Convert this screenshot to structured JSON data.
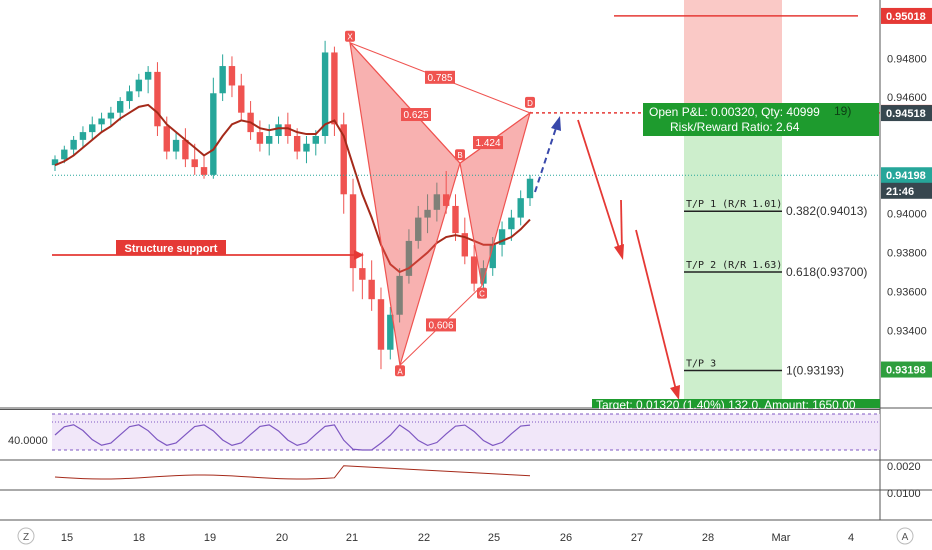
{
  "chart_data": {
    "type": "candlestick",
    "symbol_timeframe_hint": "",
    "x_axis": {
      "ticks": [
        "15",
        "18",
        "19",
        "20",
        "21",
        "22",
        "25",
        "26",
        "27",
        "28",
        "Mar",
        "4"
      ],
      "left_corner": "Z",
      "right_corner": "A"
    },
    "y_axis": {
      "range": [
        0.93,
        0.951
      ],
      "ticks": [
        "0.94800",
        "0.94600",
        "0.94200",
        "0.94000",
        "0.93800",
        "0.93600",
        "0.93400"
      ],
      "labels": [
        {
          "text": "0.95018",
          "value": 0.95018,
          "color": "#e53935"
        },
        {
          "text": "0.94519",
          "value": 0.94519,
          "color": "#e53935"
        },
        {
          "text": "0.94518",
          "value": 0.94518,
          "color": "#37474f"
        },
        {
          "text": "0.94198",
          "value": 0.94198,
          "color": "#26a69a"
        },
        {
          "text": "21:46",
          "value": 0.94118,
          "color": "#37474f"
        },
        {
          "text": "0.93198",
          "value": 0.93198,
          "color": "#2e9e3e"
        }
      ]
    },
    "series": [
      {
        "kind": "candles",
        "bars": [
          [
            0.9425,
            0.943,
            0.9422,
            0.9428
          ],
          [
            0.9428,
            0.9435,
            0.9426,
            0.9433
          ],
          [
            0.9433,
            0.944,
            0.943,
            0.9438
          ],
          [
            0.9438,
            0.9445,
            0.9434,
            0.9442
          ],
          [
            0.9442,
            0.945,
            0.9438,
            0.9446
          ],
          [
            0.9446,
            0.9452,
            0.9442,
            0.9449
          ],
          [
            0.9449,
            0.9455,
            0.9445,
            0.9452
          ],
          [
            0.9452,
            0.946,
            0.9448,
            0.9458
          ],
          [
            0.9458,
            0.9466,
            0.9454,
            0.9463
          ],
          [
            0.9463,
            0.9472,
            0.946,
            0.9469
          ],
          [
            0.9469,
            0.9476,
            0.9462,
            0.9473
          ],
          [
            0.9473,
            0.9478,
            0.944,
            0.9445
          ],
          [
            0.9445,
            0.945,
            0.9428,
            0.9432
          ],
          [
            0.9432,
            0.9442,
            0.9428,
            0.9438
          ],
          [
            0.9438,
            0.9444,
            0.9424,
            0.9428
          ],
          [
            0.9428,
            0.9436,
            0.942,
            0.9424
          ],
          [
            0.9424,
            0.943,
            0.9418,
            0.942
          ],
          [
            0.942,
            0.947,
            0.9418,
            0.9462
          ],
          [
            0.9462,
            0.9482,
            0.9458,
            0.9476
          ],
          [
            0.9476,
            0.9481,
            0.946,
            0.9466
          ],
          [
            0.9466,
            0.9472,
            0.9448,
            0.9452
          ],
          [
            0.9452,
            0.9458,
            0.9438,
            0.9442
          ],
          [
            0.9442,
            0.9448,
            0.9432,
            0.9436
          ],
          [
            0.9436,
            0.9446,
            0.943,
            0.944
          ],
          [
            0.944,
            0.945,
            0.9436,
            0.9446
          ],
          [
            0.9446,
            0.9452,
            0.9436,
            0.944
          ],
          [
            0.944,
            0.9444,
            0.9428,
            0.9432
          ],
          [
            0.9432,
            0.944,
            0.9426,
            0.9436
          ],
          [
            0.9436,
            0.9443,
            0.943,
            0.944
          ],
          [
            0.944,
            0.9489,
            0.9436,
            0.9483
          ],
          [
            0.9483,
            0.9486,
            0.944,
            0.9446
          ],
          [
            0.9446,
            0.9452,
            0.94,
            0.941
          ],
          [
            0.941,
            0.9418,
            0.936,
            0.9372
          ],
          [
            0.9372,
            0.938,
            0.9356,
            0.9366
          ],
          [
            0.9366,
            0.9376,
            0.935,
            0.9356
          ],
          [
            0.9356,
            0.9362,
            0.932,
            0.933
          ],
          [
            0.933,
            0.9352,
            0.9325,
            0.9348
          ],
          [
            0.9348,
            0.9372,
            0.9344,
            0.9368
          ],
          [
            0.9368,
            0.9392,
            0.9364,
            0.9386
          ],
          [
            0.9386,
            0.9404,
            0.9382,
            0.9398
          ],
          [
            0.9398,
            0.941,
            0.939,
            0.9402
          ],
          [
            0.9402,
            0.9416,
            0.9396,
            0.941
          ],
          [
            0.941,
            0.9422,
            0.94,
            0.9404
          ],
          [
            0.9404,
            0.941,
            0.9386,
            0.939
          ],
          [
            0.939,
            0.9398,
            0.9374,
            0.9378
          ],
          [
            0.9378,
            0.9384,
            0.936,
            0.9364
          ],
          [
            0.9364,
            0.9376,
            0.936,
            0.9372
          ],
          [
            0.9372,
            0.9388,
            0.9368,
            0.9384
          ],
          [
            0.9384,
            0.9396,
            0.9378,
            0.9392
          ],
          [
            0.9392,
            0.9402,
            0.9386,
            0.9398
          ],
          [
            0.9398,
            0.9412,
            0.9394,
            0.9408
          ],
          [
            0.9408,
            0.942,
            0.9404,
            0.9418
          ]
        ]
      },
      {
        "kind": "ma",
        "color": "#a52a1a",
        "values": [
          0.9425,
          0.9427,
          0.943,
          0.9434,
          0.9438,
          0.9442,
          0.9445,
          0.9449,
          0.9452,
          0.9455,
          0.9456,
          0.9452,
          0.9446,
          0.9442,
          0.9438,
          0.9434,
          0.943,
          0.9433,
          0.944,
          0.9446,
          0.9448,
          0.9447,
          0.9444,
          0.9443,
          0.9444,
          0.9444,
          0.9442,
          0.9441,
          0.9441,
          0.9446,
          0.9448,
          0.944,
          0.9425,
          0.941,
          0.9398,
          0.9384,
          0.9374,
          0.937,
          0.9372,
          0.9376,
          0.938,
          0.9385,
          0.9388,
          0.9389,
          0.9388,
          0.9386,
          0.9384,
          0.9384,
          0.9386,
          0.9388,
          0.9392,
          0.9397
        ]
      }
    ],
    "harmonic_pattern": {
      "points": [
        {
          "label": "X",
          "value": 0.9488
        },
        {
          "label": "A",
          "value": 0.9322
        },
        {
          "label": "B",
          "value": 0.9426
        },
        {
          "label": "C",
          "value": 0.9363
        },
        {
          "label": "D",
          "value": 0.94519
        }
      ],
      "ratios": [
        "0.785",
        "0.625",
        "0.606",
        "1.424"
      ],
      "color": "#ef5350"
    },
    "annotations": {
      "structure_support": "Structure support",
      "open_pnl": "Open P&L: 0.00320, Qty: 40999",
      "open_pnl_suffix": "19)",
      "risk_reward": "Risk/Reward Ratio: 2.64",
      "target": "Target: 0.01320 (1.40%) 132.0, Amount: 1650.00",
      "tp_labels": [
        "T/P 1 (R/R 1.01)",
        "T/P 2 (R/R 1.63)",
        "T/P 3"
      ],
      "fib_labels": [
        {
          "text": "0.382(0.94013)",
          "value": 0.94013
        },
        {
          "text": "0.618(0.93700)",
          "value": 0.937
        },
        {
          "text": "1(0.93193)",
          "value": 0.93193
        }
      ]
    },
    "rsi_panel": {
      "level_label": "40.0000",
      "color": "#7e57c2"
    },
    "lower_panel": {
      "ticks": [
        "0.0020",
        "0.0100"
      ],
      "color": "#a52a1a"
    },
    "grid": false
  }
}
